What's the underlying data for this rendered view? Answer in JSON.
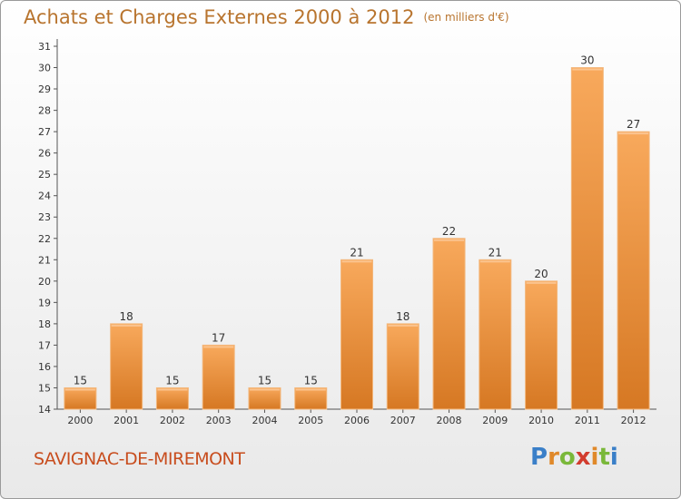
{
  "title": "Achats et Charges Externes 2000 à 2012",
  "unit": "(en milliers d'€)",
  "commune": "SAVIGNAC-DE-MIREMONT",
  "logo_text": "Proxiti",
  "colors": {
    "bar_light": "#f7a75a",
    "bar_dark": "#d97a24",
    "title": "#b8742e",
    "commune": "#c84d1e"
  },
  "chart_data": {
    "type": "bar",
    "categories": [
      "2000",
      "2001",
      "2002",
      "2003",
      "2004",
      "2005",
      "2006",
      "2007",
      "2008",
      "2009",
      "2010",
      "2011",
      "2012"
    ],
    "values": [
      15,
      18,
      15,
      17,
      15,
      15,
      21,
      18,
      22,
      21,
      20,
      30,
      27
    ],
    "y_ticks": [
      14,
      15,
      16,
      17,
      18,
      19,
      20,
      21,
      22,
      23,
      24,
      25,
      26,
      27,
      28,
      29,
      30,
      31
    ],
    "ylim": [
      14,
      31
    ],
    "grid": false,
    "data_labels": true
  }
}
